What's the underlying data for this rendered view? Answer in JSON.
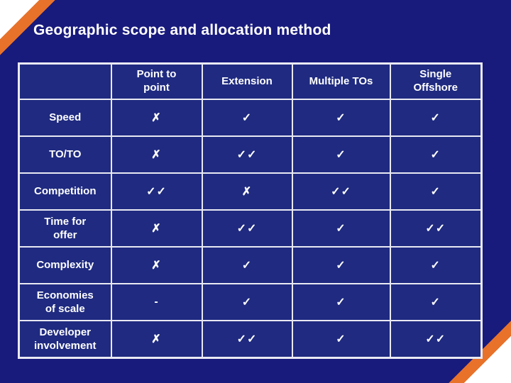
{
  "slide": {
    "title": "Geographic scope and allocation method",
    "colors": {
      "background": "#181A7C",
      "cell_fill": "#1F2A80",
      "table_border": "#E9E9F3",
      "accent_orange": "#E8722A",
      "corner_white": "#FFFFFF",
      "text": "#FFFFFF"
    }
  },
  "chart_data": {
    "type": "table",
    "title": "Geographic scope and allocation method",
    "col_headers": [
      "",
      "Point to\npoint",
      "Extension",
      "Multiple TOs",
      "Single\nOffshore"
    ],
    "rows": [
      {
        "label": "Speed",
        "cells": [
          "✗",
          "✓",
          "✓",
          "✓"
        ]
      },
      {
        "label": "TO/TO",
        "cells": [
          "✗",
          "✓✓",
          "✓",
          "✓"
        ]
      },
      {
        "label": "Competition",
        "cells": [
          "✓✓",
          "✗",
          "✓✓",
          "✓"
        ]
      },
      {
        "label": "Time for\noffer",
        "cells": [
          "✗",
          "✓✓",
          "✓",
          "✓✓"
        ]
      },
      {
        "label": "Complexity",
        "cells": [
          "✗",
          "✓",
          "✓",
          "✓"
        ]
      },
      {
        "label": "Economies\nof scale",
        "cells": [
          "-",
          "✓",
          "✓",
          "✓"
        ]
      },
      {
        "label": "Developer\ninvolvement",
        "cells": [
          "✗",
          "✓✓",
          "✓",
          "✓✓"
        ]
      }
    ]
  }
}
